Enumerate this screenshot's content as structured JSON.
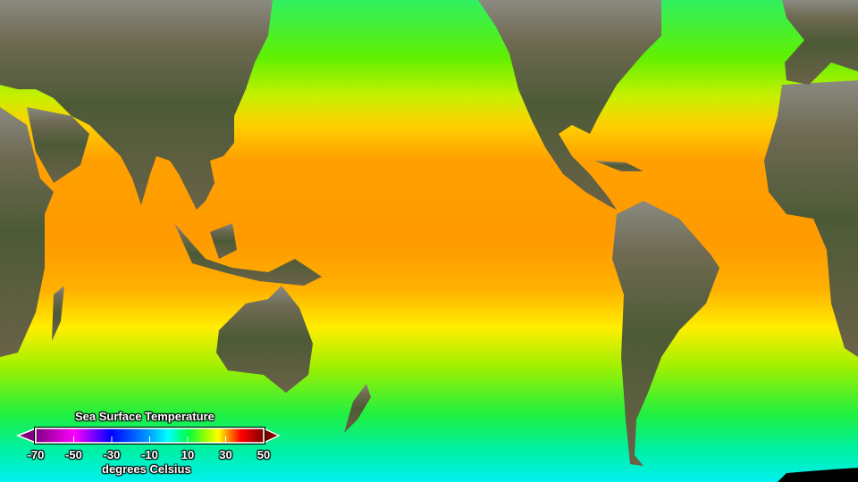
{
  "map": {
    "variable": "Sea Surface Temperature",
    "projection": "equirectangular, Pacific-centered",
    "basemap": "satellite land imagery"
  },
  "legend": {
    "title": "Sea Surface Temperature",
    "units": "degrees Celsius",
    "range": [
      -70,
      50
    ],
    "ticks": [
      "-70",
      "-50",
      "-30",
      "-10",
      "10",
      "30",
      "50"
    ],
    "colors": [
      "#800080",
      "#ff00ff",
      "#8000ff",
      "#0000ff",
      "#0090ff",
      "#00ffff",
      "#00ff60",
      "#80ff00",
      "#ffff00",
      "#ff8000",
      "#ff0000",
      "#800000"
    ],
    "extend_low_color": "#800080",
    "extend_high_color": "#800000"
  }
}
